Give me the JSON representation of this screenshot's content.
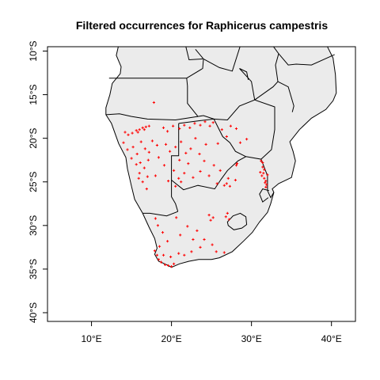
{
  "title": "Filtered occurrences for Raphicerus campestris",
  "map": {
    "land_color": "#ebebeb",
    "border_color": "#000000",
    "point_color": "#ff0000",
    "lon_range": [
      4.5,
      43
    ],
    "lat_range": [
      -41,
      -9.5
    ]
  },
  "x_axis": {
    "ticks": [
      {
        "value": 10,
        "label": "10°E"
      },
      {
        "value": 20,
        "label": "20°E"
      },
      {
        "value": 30,
        "label": "30°E"
      },
      {
        "value": 40,
        "label": "40°E"
      }
    ]
  },
  "y_axis": {
    "ticks": [
      {
        "value": -10,
        "label": "10°S"
      },
      {
        "value": -15,
        "label": "15°S"
      },
      {
        "value": -20,
        "label": "20°S"
      },
      {
        "value": -25,
        "label": "25°S"
      },
      {
        "value": -30,
        "label": "30°S"
      },
      {
        "value": -35,
        "label": "35°S"
      },
      {
        "value": -40,
        "label": "40°S"
      }
    ]
  },
  "occurrences": [
    [
      17.8,
      -15.9
    ],
    [
      14.2,
      -19.3
    ],
    [
      14.6,
      -19.6
    ],
    [
      15.1,
      -19.4
    ],
    [
      15.6,
      -19.1
    ],
    [
      16.0,
      -19.0
    ],
    [
      16.4,
      -18.8
    ],
    [
      16.8,
      -18.7
    ],
    [
      17.2,
      -18.6
    ],
    [
      15.8,
      -19.3
    ],
    [
      16.6,
      -19.0
    ],
    [
      14.0,
      -20.5
    ],
    [
      14.5,
      -21.3
    ],
    [
      15.2,
      -21.0
    ],
    [
      15.7,
      -21.8
    ],
    [
      16.2,
      -20.4
    ],
    [
      16.7,
      -21.2
    ],
    [
      17.2,
      -21.6
    ],
    [
      17.6,
      -20.3
    ],
    [
      18.2,
      -20.8
    ],
    [
      15.0,
      -22.3
    ],
    [
      15.6,
      -23.0
    ],
    [
      16.1,
      -22.8
    ],
    [
      16.6,
      -23.4
    ],
    [
      17.1,
      -22.5
    ],
    [
      16.0,
      -24.0
    ],
    [
      15.9,
      -24.6
    ],
    [
      16.4,
      -25.0
    ],
    [
      17.0,
      -24.4
    ],
    [
      16.9,
      -25.8
    ],
    [
      18.0,
      -24.3
    ],
    [
      18.4,
      -22.2
    ],
    [
      19.0,
      -18.8
    ],
    [
      19.5,
      -19.2
    ],
    [
      20.2,
      -18.6
    ],
    [
      21.0,
      -18.9
    ],
    [
      21.6,
      -18.5
    ],
    [
      22.3,
      -18.8
    ],
    [
      22.9,
      -18.3
    ],
    [
      23.6,
      -18.5
    ],
    [
      24.2,
      -18.1
    ],
    [
      24.8,
      -18.6
    ],
    [
      25.2,
      -18.2
    ],
    [
      26.3,
      -19.0
    ],
    [
      26.9,
      -19.8
    ],
    [
      27.4,
      -18.6
    ],
    [
      28.1,
      -18.9
    ],
    [
      28.6,
      -20.5
    ],
    [
      29.4,
      -20.1
    ],
    [
      25.8,
      -20.6
    ],
    [
      24.3,
      -20.7
    ],
    [
      19.3,
      -20.7
    ],
    [
      19.8,
      -21.5
    ],
    [
      20.5,
      -21.0
    ],
    [
      21.2,
      -20.4
    ],
    [
      21.8,
      -21.7
    ],
    [
      22.4,
      -21.2
    ],
    [
      23.0,
      -20.0
    ],
    [
      23.5,
      -21.8
    ],
    [
      24.1,
      -22.6
    ],
    [
      22.1,
      -22.9
    ],
    [
      21.0,
      -22.5
    ],
    [
      20.3,
      -23.7
    ],
    [
      19.6,
      -24.9
    ],
    [
      20.9,
      -24.6
    ],
    [
      21.6,
      -24.0
    ],
    [
      22.7,
      -24.5
    ],
    [
      23.6,
      -23.8
    ],
    [
      24.7,
      -24.3
    ],
    [
      25.3,
      -23.1
    ],
    [
      25.7,
      -25.2
    ],
    [
      19.1,
      -23.1
    ],
    [
      20.5,
      -25.5
    ],
    [
      21.2,
      -25.0
    ],
    [
      26.6,
      -25.4
    ],
    [
      26.9,
      -25.2
    ],
    [
      27.3,
      -25.5
    ],
    [
      27.1,
      -24.6
    ],
    [
      28.1,
      -23.1
    ],
    [
      28.2,
      -22.9
    ],
    [
      26.1,
      -23.7
    ],
    [
      28.0,
      -24.8
    ],
    [
      31.2,
      -22.6
    ],
    [
      31.4,
      -23.3
    ],
    [
      31.5,
      -24.0
    ],
    [
      31.6,
      -24.6
    ],
    [
      31.8,
      -24.9
    ],
    [
      31.9,
      -25.3
    ],
    [
      31.6,
      -23.6
    ],
    [
      31.3,
      -24.3
    ],
    [
      31.8,
      -25.6
    ],
    [
      32.0,
      -24.2
    ],
    [
      31.1,
      -23.9
    ],
    [
      31.7,
      -25.1
    ],
    [
      31.4,
      -22.8
    ],
    [
      26.8,
      -29.0
    ],
    [
      27.2,
      -29.3
    ],
    [
      27.0,
      -28.6
    ],
    [
      24.7,
      -28.8
    ],
    [
      25.2,
      -29.1
    ],
    [
      24.9,
      -29.4
    ],
    [
      18.0,
      -29.2
    ],
    [
      18.3,
      -30.0
    ],
    [
      18.9,
      -30.8
    ],
    [
      19.5,
      -31.8
    ],
    [
      18.5,
      -32.4
    ],
    [
      17.9,
      -32.9
    ],
    [
      18.2,
      -33.4
    ],
    [
      18.4,
      -33.9
    ],
    [
      18.7,
      -34.2
    ],
    [
      19.2,
      -34.5
    ],
    [
      19.6,
      -34.6
    ],
    [
      20.0,
      -34.7
    ],
    [
      20.3,
      -34.4
    ],
    [
      19.0,
      -33.4
    ],
    [
      19.9,
      -33.6
    ],
    [
      20.9,
      -33.2
    ],
    [
      21.6,
      -33.4
    ],
    [
      22.5,
      -33.0
    ],
    [
      23.6,
      -32.5
    ],
    [
      24.1,
      -31.6
    ],
    [
      25.1,
      -32.2
    ],
    [
      25.6,
      -33.0
    ],
    [
      26.6,
      -33.1
    ],
    [
      22.0,
      -30.1
    ],
    [
      23.2,
      -30.6
    ],
    [
      20.6,
      -29.1
    ],
    [
      21.1,
      -31.1
    ],
    [
      22.7,
      -31.6
    ]
  ]
}
